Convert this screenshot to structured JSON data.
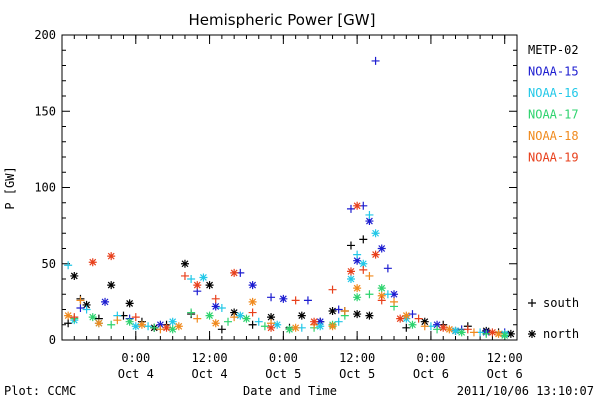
{
  "chart_data": {
    "type": "scatter",
    "title": "Hemispheric Power [GW]",
    "xlabel": "Date and Time",
    "ylabel": "P [GW]",
    "ylim": [
      0,
      200
    ],
    "xlim": [
      "2011-10-03T12:00",
      "2011-10-06T14:00"
    ],
    "x_ticks": [
      {
        "time": "2011-10-04T00:00",
        "line1": "0:00",
        "line2": "Oct 4"
      },
      {
        "time": "2011-10-04T12:00",
        "line1": "12:00",
        "line2": "Oct 4"
      },
      {
        "time": "2011-10-05T00:00",
        "line1": "0:00",
        "line2": "Oct 5"
      },
      {
        "time": "2011-10-05T12:00",
        "line1": "12:00",
        "line2": "Oct 5"
      },
      {
        "time": "2011-10-06T00:00",
        "line1": "0:00",
        "line2": "Oct 6"
      },
      {
        "time": "2011-10-06T12:00",
        "line1": "12:00",
        "line2": "Oct 6"
      }
    ],
    "y_ticks": [
      "0",
      "50",
      "100",
      "150",
      "200"
    ],
    "legend_position": "right",
    "marker_legend": [
      {
        "marker": "+",
        "label": "south"
      },
      {
        "marker": "*",
        "label": "north"
      }
    ],
    "series": [
      {
        "name": "METP-02",
        "color": "#000000",
        "points": [
          [
            "2011-10-03T13:00",
            11,
            "s"
          ],
          [
            "2011-10-03T14:00",
            42,
            "n"
          ],
          [
            "2011-10-03T15:00",
            27,
            "s"
          ],
          [
            "2011-10-03T16:00",
            23,
            "n"
          ],
          [
            "2011-10-03T18:00",
            14,
            "s"
          ],
          [
            "2011-10-03T20:00",
            36,
            "n"
          ],
          [
            "2011-10-03T22:00",
            16,
            "s"
          ],
          [
            "2011-10-03T23:00",
            24,
            "n"
          ],
          [
            "2011-10-04T01:00",
            12,
            "s"
          ],
          [
            "2011-10-04T03:00",
            8,
            "n"
          ],
          [
            "2011-10-04T05:00",
            10,
            "s"
          ],
          [
            "2011-10-04T08:00",
            50,
            "n"
          ],
          [
            "2011-10-04T09:00",
            17,
            "s"
          ],
          [
            "2011-10-04T12:00",
            36,
            "n"
          ],
          [
            "2011-10-04T14:00",
            7,
            "s"
          ],
          [
            "2011-10-04T16:00",
            18,
            "n"
          ],
          [
            "2011-10-04T19:00",
            10,
            "s"
          ],
          [
            "2011-10-04T22:00",
            15,
            "n"
          ],
          [
            "2011-10-05T01:00",
            8,
            "s"
          ],
          [
            "2011-10-05T03:00",
            16,
            "n"
          ],
          [
            "2011-10-05T06:00",
            12,
            "s"
          ],
          [
            "2011-10-05T08:00",
            19,
            "n"
          ],
          [
            "2011-10-05T10:00",
            19,
            "s"
          ],
          [
            "2011-10-05T11:00",
            62,
            "s"
          ],
          [
            "2011-10-05T12:00",
            17,
            "n"
          ],
          [
            "2011-10-05T13:00",
            66,
            "s"
          ],
          [
            "2011-10-05T14:00",
            16,
            "n"
          ],
          [
            "2011-10-05T20:00",
            8,
            "s"
          ],
          [
            "2011-10-05T23:00",
            12,
            "n"
          ],
          [
            "2011-10-06T02:00",
            10,
            "s"
          ],
          [
            "2011-10-06T04:00",
            6,
            "n"
          ],
          [
            "2011-10-06T06:00",
            9,
            "s"
          ],
          [
            "2011-10-06T09:00",
            6,
            "n"
          ],
          [
            "2011-10-06T11:00",
            5,
            "s"
          ],
          [
            "2011-10-06T13:00",
            4,
            "n"
          ]
        ]
      },
      {
        "name": "NOAA-15",
        "color": "#1c1cd0",
        "points": [
          [
            "2011-10-03T15:00",
            21,
            "s"
          ],
          [
            "2011-10-03T19:00",
            25,
            "n"
          ],
          [
            "2011-10-03T23:00",
            14,
            "s"
          ],
          [
            "2011-10-04T04:00",
            10,
            "n"
          ],
          [
            "2011-10-04T10:00",
            32,
            "s"
          ],
          [
            "2011-10-04T13:00",
            22,
            "n"
          ],
          [
            "2011-10-04T17:00",
            44,
            "s"
          ],
          [
            "2011-10-04T19:00",
            36,
            "n"
          ],
          [
            "2011-10-04T22:00",
            28,
            "s"
          ],
          [
            "2011-10-05T00:00",
            27,
            "n"
          ],
          [
            "2011-10-05T04:00",
            26,
            "s"
          ],
          [
            "2011-10-05T06:00",
            12,
            "n"
          ],
          [
            "2011-10-05T09:00",
            20,
            "s"
          ],
          [
            "2011-10-05T11:00",
            86,
            "s"
          ],
          [
            "2011-10-05T12:00",
            52,
            "n"
          ],
          [
            "2011-10-05T13:00",
            88,
            "s"
          ],
          [
            "2011-10-05T14:00",
            78,
            "n"
          ],
          [
            "2011-10-05T15:00",
            183,
            "s"
          ],
          [
            "2011-10-05T16:00",
            60,
            "n"
          ],
          [
            "2011-10-05T17:00",
            47,
            "s"
          ],
          [
            "2011-10-05T18:00",
            30,
            "n"
          ],
          [
            "2011-10-05T21:00",
            17,
            "s"
          ],
          [
            "2011-10-06T01:00",
            10,
            "n"
          ],
          [
            "2011-10-06T05:00",
            7,
            "s"
          ],
          [
            "2011-10-06T09:00",
            5,
            "n"
          ],
          [
            "2011-10-06T12:00",
            5,
            "s"
          ]
        ]
      },
      {
        "name": "NOAA-16",
        "color": "#22c8e8",
        "points": [
          [
            "2011-10-03T13:00",
            49,
            "s"
          ],
          [
            "2011-10-03T14:00",
            13,
            "n"
          ],
          [
            "2011-10-03T16:00",
            20,
            "s"
          ],
          [
            "2011-10-03T18:00",
            11,
            "n"
          ],
          [
            "2011-10-03T21:00",
            16,
            "s"
          ],
          [
            "2011-10-04T00:00",
            9,
            "n"
          ],
          [
            "2011-10-04T02:00",
            9,
            "s"
          ],
          [
            "2011-10-04T06:00",
            12,
            "n"
          ],
          [
            "2011-10-04T09:00",
            40,
            "s"
          ],
          [
            "2011-10-04T11:00",
            41,
            "n"
          ],
          [
            "2011-10-04T14:00",
            21,
            "s"
          ],
          [
            "2011-10-04T17:00",
            16,
            "n"
          ],
          [
            "2011-10-04T20:00",
            12,
            "s"
          ],
          [
            "2011-10-04T23:00",
            10,
            "n"
          ],
          [
            "2011-10-05T03:00",
            8,
            "s"
          ],
          [
            "2011-10-05T06:00",
            9,
            "n"
          ],
          [
            "2011-10-05T09:00",
            12,
            "s"
          ],
          [
            "2011-10-05T11:00",
            40,
            "n"
          ],
          [
            "2011-10-05T12:00",
            56,
            "s"
          ],
          [
            "2011-10-05T13:00",
            50,
            "n"
          ],
          [
            "2011-10-05T14:00",
            82,
            "s"
          ],
          [
            "2011-10-05T15:00",
            70,
            "n"
          ],
          [
            "2011-10-05T17:00",
            30,
            "s"
          ],
          [
            "2011-10-05T20:00",
            14,
            "n"
          ],
          [
            "2011-10-06T00:00",
            9,
            "s"
          ],
          [
            "2011-10-06T04:00",
            6,
            "n"
          ],
          [
            "2011-10-06T08:00",
            5,
            "s"
          ],
          [
            "2011-10-06T12:00",
            4,
            "n"
          ]
        ]
      },
      {
        "name": "NOAA-17",
        "color": "#2ed36e",
        "points": [
          [
            "2011-10-03T14:00",
            14,
            "s"
          ],
          [
            "2011-10-03T17:00",
            15,
            "n"
          ],
          [
            "2011-10-03T20:00",
            10,
            "s"
          ],
          [
            "2011-10-03T23:00",
            12,
            "n"
          ],
          [
            "2011-10-04T03:00",
            8,
            "s"
          ],
          [
            "2011-10-04T06:00",
            7,
            "n"
          ],
          [
            "2011-10-04T09:00",
            18,
            "s"
          ],
          [
            "2011-10-04T12:00",
            16,
            "n"
          ],
          [
            "2011-10-04T15:00",
            12,
            "s"
          ],
          [
            "2011-10-04T18:00",
            14,
            "n"
          ],
          [
            "2011-10-04T21:00",
            9,
            "s"
          ],
          [
            "2011-10-05T01:00",
            7,
            "n"
          ],
          [
            "2011-10-05T05:00",
            8,
            "s"
          ],
          [
            "2011-10-05T08:00",
            10,
            "n"
          ],
          [
            "2011-10-05T10:00",
            16,
            "s"
          ],
          [
            "2011-10-05T12:00",
            28,
            "n"
          ],
          [
            "2011-10-05T14:00",
            30,
            "s"
          ],
          [
            "2011-10-05T16:00",
            34,
            "n"
          ],
          [
            "2011-10-05T18:00",
            22,
            "s"
          ],
          [
            "2011-10-05T21:00",
            10,
            "n"
          ],
          [
            "2011-10-06T01:00",
            7,
            "s"
          ],
          [
            "2011-10-06T05:00",
            5,
            "n"
          ],
          [
            "2011-10-06T09:00",
            4,
            "s"
          ],
          [
            "2011-10-06T12:00",
            3,
            "n"
          ]
        ]
      },
      {
        "name": "NOAA-18",
        "color": "#f08a1e",
        "points": [
          [
            "2011-10-03T13:00",
            16,
            "n"
          ],
          [
            "2011-10-03T15:00",
            26,
            "s"
          ],
          [
            "2011-10-03T18:00",
            11,
            "n"
          ],
          [
            "2011-10-03T21:00",
            13,
            "s"
          ],
          [
            "2011-10-04T01:00",
            10,
            "n"
          ],
          [
            "2011-10-04T04:00",
            7,
            "s"
          ],
          [
            "2011-10-04T07:00",
            9,
            "n"
          ],
          [
            "2011-10-04T10:00",
            14,
            "s"
          ],
          [
            "2011-10-04T13:00",
            11,
            "n"
          ],
          [
            "2011-10-04T16:00",
            15,
            "s"
          ],
          [
            "2011-10-04T19:00",
            25,
            "n"
          ],
          [
            "2011-10-04T22:00",
            11,
            "s"
          ],
          [
            "2011-10-05T02:00",
            8,
            "n"
          ],
          [
            "2011-10-05T05:00",
            10,
            "s"
          ],
          [
            "2011-10-05T08:00",
            9,
            "n"
          ],
          [
            "2011-10-05T10:00",
            19,
            "s"
          ],
          [
            "2011-10-05T12:00",
            34,
            "n"
          ],
          [
            "2011-10-05T14:00",
            42,
            "s"
          ],
          [
            "2011-10-05T16:00",
            29,
            "n"
          ],
          [
            "2011-10-05T18:00",
            25,
            "s"
          ],
          [
            "2011-10-05T20:00",
            16,
            "n"
          ],
          [
            "2011-10-05T23:00",
            9,
            "s"
          ],
          [
            "2011-10-06T03:00",
            7,
            "n"
          ],
          [
            "2011-10-06T07:00",
            5,
            "s"
          ],
          [
            "2011-10-06T11:00",
            4,
            "n"
          ]
        ]
      },
      {
        "name": "NOAA-19",
        "color": "#e8401c",
        "points": [
          [
            "2011-10-03T14:00",
            15,
            "s"
          ],
          [
            "2011-10-03T17:00",
            51,
            "n"
          ],
          [
            "2011-10-03T20:00",
            55,
            "n"
          ],
          [
            "2011-10-04T00:00",
            15,
            "s"
          ],
          [
            "2011-10-04T05:00",
            8,
            "n"
          ],
          [
            "2011-10-04T08:00",
            42,
            "s"
          ],
          [
            "2011-10-04T10:00",
            36,
            "n"
          ],
          [
            "2011-10-04T13:00",
            27,
            "s"
          ],
          [
            "2011-10-04T16:00",
            44,
            "n"
          ],
          [
            "2011-10-04T19:00",
            18,
            "s"
          ],
          [
            "2011-10-04T22:00",
            8,
            "n"
          ],
          [
            "2011-10-05T02:00",
            26,
            "s"
          ],
          [
            "2011-10-05T05:00",
            12,
            "n"
          ],
          [
            "2011-10-05T08:00",
            33,
            "s"
          ],
          [
            "2011-10-05T11:00",
            45,
            "n"
          ],
          [
            "2011-10-05T12:00",
            88,
            "n"
          ],
          [
            "2011-10-05T13:00",
            46,
            "s"
          ],
          [
            "2011-10-05T15:00",
            56,
            "n"
          ],
          [
            "2011-10-05T16:00",
            26,
            "s"
          ],
          [
            "2011-10-05T19:00",
            14,
            "n"
          ],
          [
            "2011-10-05T22:00",
            14,
            "s"
          ],
          [
            "2011-10-06T02:00",
            8,
            "n"
          ],
          [
            "2011-10-06T06:00",
            7,
            "s"
          ],
          [
            "2011-10-06T10:00",
            5,
            "n"
          ]
        ]
      }
    ]
  },
  "footer": {
    "left": "Plot: CCMC",
    "right": "2011/10/06 13:10:07"
  }
}
